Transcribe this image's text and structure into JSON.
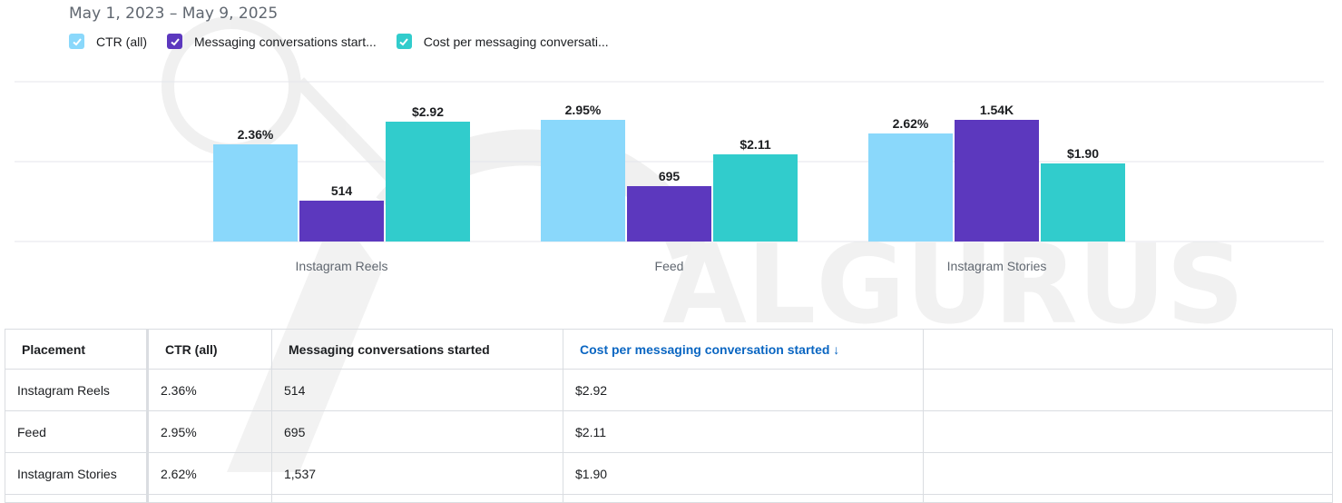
{
  "header": {
    "date_range": "May 1, 2023 – May 9, 2025"
  },
  "legend": [
    {
      "label": "CTR (all)",
      "color": "#8ad8fb",
      "icon": "check-icon"
    },
    {
      "label": "Messaging conversations start...",
      "color": "#5c38be",
      "icon": "check-icon"
    },
    {
      "label": "Cost per messaging conversati...",
      "color": "#31cccc",
      "icon": "check-icon"
    }
  ],
  "chart_data": {
    "type": "bar",
    "categories": [
      "Instagram Reels",
      "Feed",
      "Instagram Stories"
    ],
    "series": [
      {
        "name": "CTR (all)",
        "values": [
          2.36,
          2.95,
          2.62
        ],
        "labels": [
          "2.36%",
          "2.95%",
          "2.62%"
        ],
        "color": "#8ad8fb",
        "max": 3.0
      },
      {
        "name": "Messaging conversations started",
        "values": [
          514,
          695,
          1537
        ],
        "labels": [
          "514",
          "695",
          "1.54K"
        ],
        "color": "#5c38be",
        "max": 1560
      },
      {
        "name": "Cost per messaging conversation started",
        "values": [
          2.92,
          2.11,
          1.9
        ],
        "labels": [
          "$2.92",
          "$2.11",
          "$1.90"
        ],
        "color": "#31cccc",
        "max": 3.0
      }
    ],
    "grid": true,
    "legend_position": "top-left"
  },
  "table": {
    "columns": [
      "Placement",
      "CTR (all)",
      "Messaging conversations started",
      "Cost per messaging conversation started ↓",
      ""
    ],
    "rows": [
      [
        "Instagram Reels",
        "2.36%",
        "514",
        "$2.92",
        ""
      ],
      [
        "Feed",
        "2.95%",
        "695",
        "$2.11",
        ""
      ],
      [
        "Instagram Stories",
        "2.62%",
        "1,537",
        "$1.90",
        ""
      ]
    ]
  },
  "watermark": {
    "text": "ALGURUS"
  }
}
